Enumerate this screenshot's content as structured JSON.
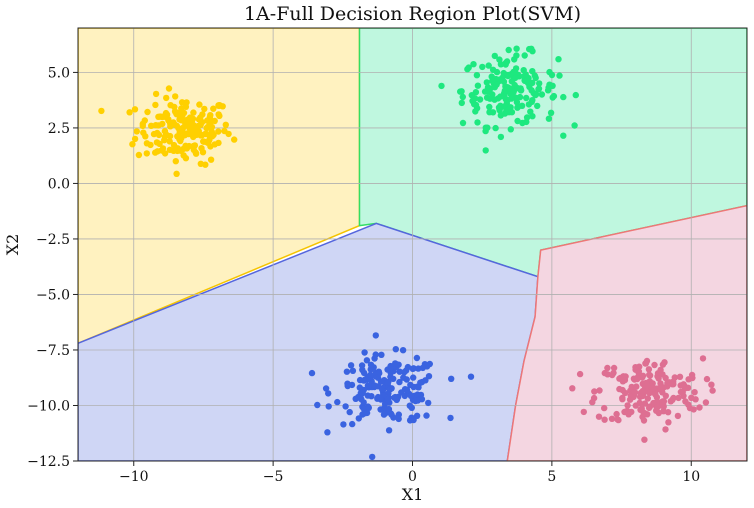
{
  "chart_data": {
    "type": "scatter",
    "title": "1A-Full Decision Region Plot(SVM)",
    "xlabel": "X1",
    "ylabel": "X2",
    "xlim": [
      -12,
      12
    ],
    "ylim": [
      -12.5,
      7
    ],
    "grid": true,
    "x_ticks": [
      -10,
      -5,
      0,
      5,
      10
    ],
    "x_tick_labels": [
      "−10",
      "−5",
      "0",
      "5",
      "10"
    ],
    "y_ticks": [
      5.0,
      2.5,
      0.0,
      -2.5,
      -5.0,
      -7.5,
      -10.0,
      -12.5
    ],
    "y_tick_labels": [
      "5.0",
      "2.5",
      "0.0",
      "−2.5",
      "−5.0",
      "−7.5",
      "−10.0",
      "−12.5"
    ],
    "regions": [
      {
        "class": "yellow",
        "color": "#fff2c0",
        "edge": "#f5c400",
        "polygon": [
          [
            -12,
            7
          ],
          [
            -1.9,
            7
          ],
          [
            -1.9,
            -1.9
          ],
          [
            -12,
            -7.2
          ]
        ]
      },
      {
        "class": "green",
        "color": "#bff7df",
        "edge": "#33dd66",
        "polygon": [
          [
            -1.9,
            7
          ],
          [
            12,
            7
          ],
          [
            12,
            -1.0
          ],
          [
            4.6,
            -3.0
          ],
          [
            4.5,
            -4.2
          ],
          [
            -1.3,
            -1.8
          ],
          [
            -1.9,
            -1.9
          ]
        ]
      },
      {
        "class": "blue",
        "color": "#cfd6f5",
        "edge": "#5566dd",
        "polygon": [
          [
            -12,
            -7.2
          ],
          [
            -1.3,
            -1.8
          ],
          [
            4.5,
            -4.2
          ],
          [
            4.4,
            -6.0
          ],
          [
            4.0,
            -8.0
          ],
          [
            3.7,
            -10.0
          ],
          [
            3.4,
            -12.5
          ],
          [
            -12,
            -12.5
          ]
        ]
      },
      {
        "class": "pink",
        "color": "#f4d6e1",
        "edge": "#ee7777",
        "polygon": [
          [
            4.5,
            -4.2
          ],
          [
            4.6,
            -3.0
          ],
          [
            12,
            -1.0
          ],
          [
            12,
            -12.5
          ],
          [
            3.4,
            -12.5
          ],
          [
            3.7,
            -10.0
          ],
          [
            4.0,
            -8.0
          ],
          [
            4.4,
            -6.0
          ]
        ]
      }
    ],
    "series": [
      {
        "color": "#ffd000",
        "center": [
          -8.2,
          2.4
        ],
        "spread": [
          0.85,
          0.75
        ],
        "count": 180
      },
      {
        "color": "#1ee87f",
        "center": [
          3.5,
          4.2
        ],
        "spread": [
          0.85,
          0.8
        ],
        "count": 180
      },
      {
        "color": "#3a63e0",
        "center": [
          -0.9,
          -9.3
        ],
        "spread": [
          0.95,
          0.75
        ],
        "count": 180
      },
      {
        "color": "#de6f92",
        "center": [
          8.5,
          -9.4
        ],
        "spread": [
          0.95,
          0.75
        ],
        "count": 180
      }
    ]
  }
}
